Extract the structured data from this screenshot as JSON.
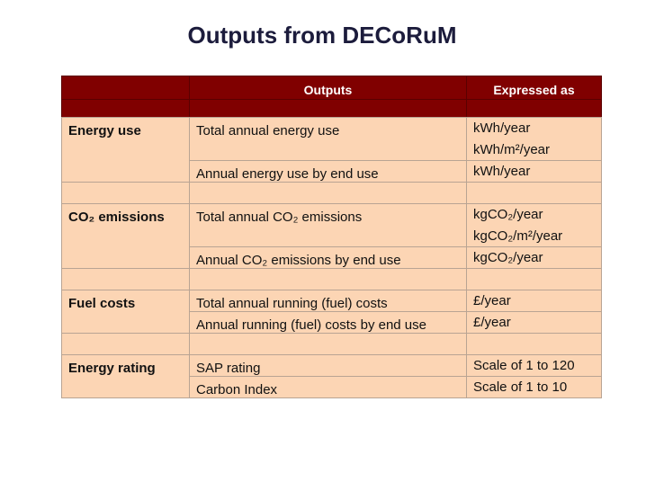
{
  "title": "Outputs from DECoRuM",
  "table": {
    "header": {
      "outputs": "Outputs",
      "expressed_as": "Expressed as"
    },
    "groups": [
      {
        "label": "Energy use",
        "rows": [
          {
            "output": "Total annual energy use",
            "expressed_as": [
              "kWh/year",
              "kWh/m²/year"
            ]
          },
          {
            "output": "Annual energy use by end use",
            "expressed_as": [
              "kWh/year"
            ]
          }
        ]
      },
      {
        "label": "CO₂ emissions",
        "rows": [
          {
            "output": "Total annual CO₂ emissions",
            "expressed_as": [
              "kgCO₂/year",
              "kgCO₂/m²/year"
            ]
          },
          {
            "output": "Annual CO₂ emissions by end use",
            "expressed_as": [
              "kgCO₂/year"
            ]
          }
        ]
      },
      {
        "label": "Fuel costs",
        "rows": [
          {
            "output": "Total annual running (fuel) costs",
            "expressed_as": [
              "£/year"
            ]
          },
          {
            "output": "Annual running (fuel) costs by end use",
            "expressed_as": [
              "£/year"
            ]
          }
        ]
      },
      {
        "label": "Energy rating",
        "rows": [
          {
            "output": "SAP rating",
            "expressed_as": [
              "Scale of 1 to 120"
            ]
          },
          {
            "output": "Carbon Index",
            "expressed_as": [
              "Scale of 1 to 10"
            ]
          }
        ]
      }
    ]
  }
}
